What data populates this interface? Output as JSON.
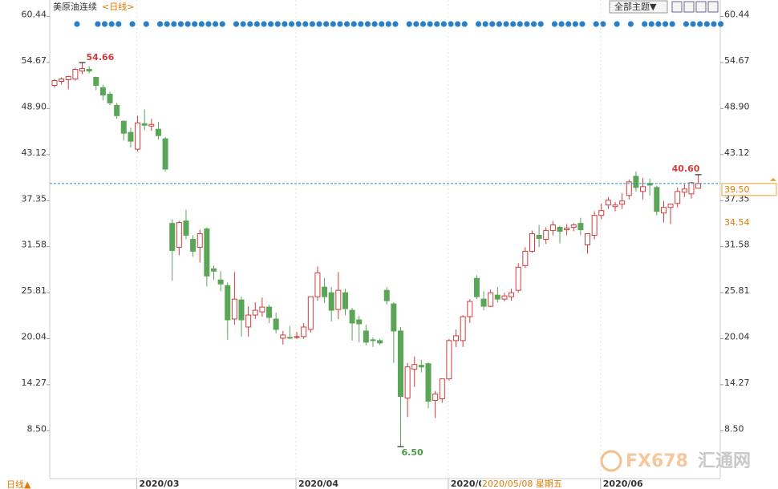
{
  "chart_data": {
    "type": "candlestick",
    "title": "美原油连续",
    "subtitle": "<日线>",
    "categories": [
      null,
      null,
      null,
      null,
      null,
      null,
      null,
      null,
      null,
      null,
      null,
      null,
      "2020/03",
      null,
      null,
      null,
      null,
      null,
      null,
      null,
      null,
      null,
      null,
      null,
      null,
      null,
      null,
      null,
      null,
      null,
      null,
      null,
      null,
      null,
      null,
      "2020/04",
      null,
      null,
      null,
      null,
      null,
      null,
      null,
      null,
      null,
      null,
      null,
      null,
      null,
      null,
      null,
      null,
      null,
      null,
      null,
      null,
      null,
      "2020/05",
      null,
      null,
      null,
      null,
      null,
      null,
      null,
      null,
      null,
      null,
      null,
      null,
      null,
      null,
      null,
      null,
      null,
      null,
      null,
      null,
      null,
      "2020/06",
      null,
      null,
      null,
      null,
      null,
      null,
      null,
      null,
      null,
      null,
      null,
      null,
      null,
      null
    ],
    "open": [
      51.8,
      52.3,
      52.5,
      52.6,
      53.6,
      53.8,
      52.8,
      51.5,
      50.7,
      49.3,
      47.3,
      45.9,
      43.8,
      47.0,
      46.7,
      46.3,
      45.1,
      34.5,
      31.5,
      34.8,
      32.5,
      31.5,
      33.8,
      28.8,
      27.4,
      26.7,
      22.5,
      24.9,
      21.5,
      23.0,
      23.4,
      24.0,
      22.5,
      20.1,
      20.2,
      20.2,
      20.3,
      21.2,
      25.3,
      26.5,
      25.8,
      23.7,
      25.8,
      23.6,
      22.4,
      21.0,
      19.9,
      19.8,
      26.1,
      24.4,
      21.0,
      12.6,
      16.2,
      16.7,
      16.9,
      12.3,
      12.5,
      15.0,
      19.8,
      19.8,
      22.8,
      27.6,
      25.0,
      24.1,
      25.5,
      25.0,
      25.3,
      26.1,
      29.2,
      31.0,
      33.0,
      32.5,
      33.6,
      34.0,
      33.7,
      34.0,
      34.5,
      31.8,
      33.0,
      35.5,
      36.8,
      36.6,
      36.9,
      38.0,
      40.4,
      38.5,
      39.5,
      39.0,
      35.8,
      36.5,
      37.0,
      38.4,
      38.2,
      38.9
    ],
    "high": [
      52.6,
      52.8,
      53.0,
      54.0,
      54.66,
      54.2,
      52.9,
      51.9,
      51.0,
      49.6,
      47.4,
      46.5,
      48.0,
      48.8,
      47.6,
      47.2,
      45.3,
      35.0,
      34.8,
      36.2,
      33.0,
      33.7,
      34.0,
      29.2,
      28.5,
      27.1,
      28.4,
      25.3,
      24.1,
      24.6,
      25.2,
      24.3,
      23.3,
      21.0,
      21.6,
      20.9,
      22.0,
      25.3,
      29.1,
      27.6,
      26.5,
      28.4,
      26.3,
      23.9,
      22.9,
      21.8,
      20.2,
      20.0,
      26.5,
      24.6,
      21.5,
      17.0,
      17.8,
      17.4,
      17.1,
      13.5,
      15.0,
      20.0,
      21.2,
      23.0,
      25.0,
      28.0,
      26.0,
      26.2,
      26.5,
      25.8,
      26.3,
      29.5,
      31.5,
      33.6,
      34.3,
      34.0,
      34.8,
      34.2,
      34.4,
      34.5,
      35.2,
      33.0,
      36.0,
      37.0,
      37.8,
      37.2,
      38.3,
      40.0,
      41.0,
      40.2,
      40.1,
      39.2,
      37.3,
      37.0,
      39.0,
      39.4,
      39.7,
      40.6
    ],
    "low": [
      51.5,
      51.9,
      51.3,
      52.4,
      53.2,
      53.3,
      51.2,
      49.9,
      49.3,
      47.6,
      44.9,
      44.0,
      43.5,
      46.2,
      46.1,
      45.0,
      41.0,
      27.3,
      30.5,
      32.5,
      30.3,
      29.6,
      26.6,
      27.4,
      26.0,
      19.9,
      21.8,
      20.3,
      20.3,
      22.5,
      22.8,
      22.0,
      20.7,
      19.3,
      20.0,
      20.0,
      20.0,
      20.8,
      24.8,
      24.5,
      22.2,
      22.5,
      23.0,
      19.8,
      19.6,
      19.2,
      19.0,
      19.3,
      24.3,
      17.0,
      6.5,
      10.2,
      14.0,
      15.8,
      11.3,
      10.1,
      12.0,
      14.8,
      19.0,
      19.0,
      22.0,
      25.0,
      23.6,
      24.0,
      24.6,
      24.7,
      24.8,
      25.8,
      28.9,
      30.8,
      31.5,
      31.9,
      33.0,
      32.0,
      33.0,
      33.5,
      33.0,
      30.7,
      32.5,
      35.0,
      36.3,
      36.0,
      36.3,
      37.5,
      38.5,
      37.5,
      38.0,
      35.5,
      34.6,
      34.4,
      36.5,
      37.8,
      37.6,
      39.0
    ],
    "close": [
      52.4,
      52.6,
      52.9,
      53.8,
      53.9,
      53.6,
      51.8,
      50.6,
      49.6,
      48.0,
      45.8,
      44.8,
      47.1,
      46.8,
      46.9,
      45.5,
      41.3,
      31.1,
      34.6,
      33.0,
      31.0,
      33.2,
      27.9,
      28.5,
      26.9,
      22.4,
      25.0,
      22.4,
      23.0,
      23.6,
      24.0,
      22.7,
      21.2,
      20.5,
      20.1,
      20.3,
      21.5,
      25.3,
      28.3,
      25.3,
      23.6,
      26.1,
      23.8,
      22.0,
      21.9,
      19.6,
      19.8,
      19.5,
      24.8,
      21.0,
      12.8,
      16.5,
      16.8,
      16.5,
      12.2,
      13.1,
      15.0,
      19.8,
      20.4,
      22.8,
      24.7,
      25.3,
      24.1,
      25.8,
      25.0,
      25.4,
      25.8,
      29.0,
      31.0,
      33.2,
      32.6,
      33.6,
      34.3,
      33.5,
      33.9,
      34.3,
      33.7,
      33.2,
      35.5,
      36.1,
      37.4,
      36.8,
      37.3,
      39.7,
      39.0,
      39.1,
      39.3,
      36.0,
      36.5,
      36.9,
      38.5,
      38.8,
      39.6,
      39.5
    ],
    "up_color": "#d23c3c",
    "down_color": "#5aa557",
    "ylim": [
      2.7,
      62.0
    ],
    "yticks": [
      {
        "value": 8.5,
        "label": "8.50"
      },
      14.27,
      20.04,
      25.81,
      31.58,
      37.35,
      43.12,
      {
        "value": 48.9,
        "label": "48.90"
      },
      54.67,
      60.44
    ],
    "annotations": [
      {
        "value": 54.66,
        "label": "54.66",
        "at": "high"
      },
      {
        "value": 40.6,
        "label": "40.60",
        "at": "high"
      },
      {
        "value": 6.5,
        "label": "6.50",
        "at": "low"
      }
    ],
    "last_price": {
      "value": 39.5,
      "label": "39.50"
    },
    "cursor_price": 34.54,
    "cursor_date": "2020/05/08 星期五",
    "toolbar": "全部主题▼",
    "period_button": "日线▲",
    "watermark": [
      "FX678",
      "汇通网"
    ]
  }
}
